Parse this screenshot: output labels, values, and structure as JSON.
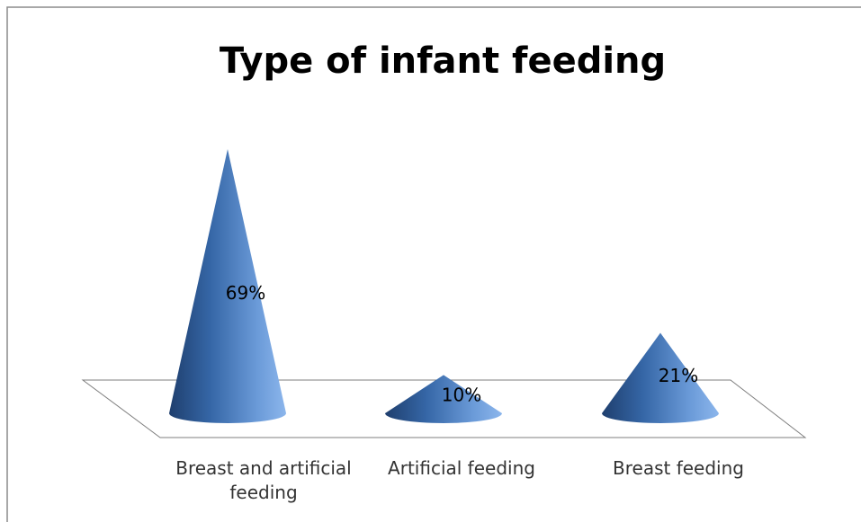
{
  "chart_data": {
    "type": "cone",
    "title": "Type of infant feeding",
    "categories": [
      "Breast and artificial feeding",
      "Artificial feeding",
      "Breast feeding"
    ],
    "values": [
      69,
      10,
      21
    ],
    "value_labels": [
      "69%",
      "10%",
      "21%"
    ],
    "color": "#4f81bd"
  }
}
